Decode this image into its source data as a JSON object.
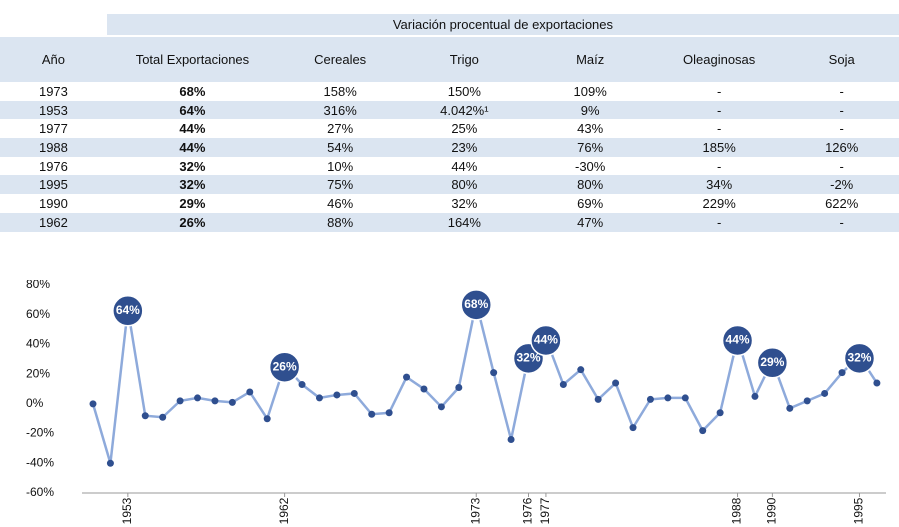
{
  "table": {
    "group_header": "Variación procentual de exportaciones",
    "columns": [
      "Año",
      "Total Exportaciones",
      "Cereales",
      "Trigo",
      "Maíz",
      "Oleaginosas",
      "Soja"
    ],
    "rows": [
      [
        "1973",
        "68%",
        "158%",
        "150%",
        "109%",
        "-",
        "-"
      ],
      [
        "1953",
        "64%",
        "316%",
        "4.042%¹",
        "9%",
        "-",
        "-"
      ],
      [
        "1977",
        "44%",
        "27%",
        "25%",
        "43%",
        "-",
        "-"
      ],
      [
        "1988",
        "44%",
        "54%",
        "23%",
        "76%",
        "185%",
        "126%"
      ],
      [
        "1976",
        "32%",
        "10%",
        "44%",
        "-30%",
        "-",
        "-"
      ],
      [
        "1995",
        "32%",
        "75%",
        "80%",
        "80%",
        "34%",
        "-2%"
      ],
      [
        "1990",
        "29%",
        "46%",
        "32%",
        "69%",
        "229%",
        "622%"
      ],
      [
        "1962",
        "26%",
        "88%",
        "164%",
        "47%",
        "-",
        "-"
      ]
    ]
  },
  "chart_data": {
    "type": "line",
    "categories": [
      null,
      null,
      "1953",
      null,
      null,
      null,
      null,
      null,
      null,
      null,
      null,
      "1962",
      null,
      null,
      null,
      null,
      null,
      null,
      null,
      null,
      null,
      null,
      "1973",
      null,
      null,
      "1976",
      "1977",
      null,
      null,
      null,
      null,
      null,
      null,
      null,
      null,
      null,
      null,
      "1988",
      null,
      "1990",
      null,
      null,
      null,
      null,
      "1995",
      null
    ],
    "values": [
      0,
      -40,
      64,
      -8,
      -9,
      2,
      4,
      2,
      1,
      8,
      -10,
      26,
      13,
      4,
      6,
      7,
      -7,
      -6,
      18,
      10,
      -2,
      11,
      68,
      21,
      -24,
      32,
      44,
      13,
      23,
      3,
      14,
      -16,
      3,
      4,
      4,
      -18,
      -6,
      44,
      5,
      29,
      -3,
      2,
      7,
      21,
      32,
      14
    ],
    "value_labels": [
      null,
      null,
      "64%",
      null,
      null,
      null,
      null,
      null,
      null,
      null,
      null,
      "26%",
      null,
      null,
      null,
      null,
      null,
      null,
      null,
      null,
      null,
      null,
      "68%",
      null,
      null,
      "32%",
      "44%",
      null,
      null,
      null,
      null,
      null,
      null,
      null,
      null,
      null,
      null,
      "44%",
      null,
      "29%",
      null,
      null,
      null,
      null,
      "32%",
      null
    ],
    "color": "#8eaadb",
    "marker_color": "#2f4f8f",
    "ylim": [
      -60,
      80
    ],
    "yticks": [
      {
        "value": -60,
        "label": "-60%"
      },
      {
        "value": -40,
        "label": "-40%"
      },
      {
        "value": -20,
        "label": "-20%"
      },
      {
        "value": 0,
        "label": "0%"
      },
      {
        "value": 20,
        "label": "20%"
      },
      {
        "value": 40,
        "label": "40%"
      },
      {
        "value": 60,
        "label": "60%"
      },
      {
        "value": 80,
        "label": "80%"
      }
    ]
  }
}
